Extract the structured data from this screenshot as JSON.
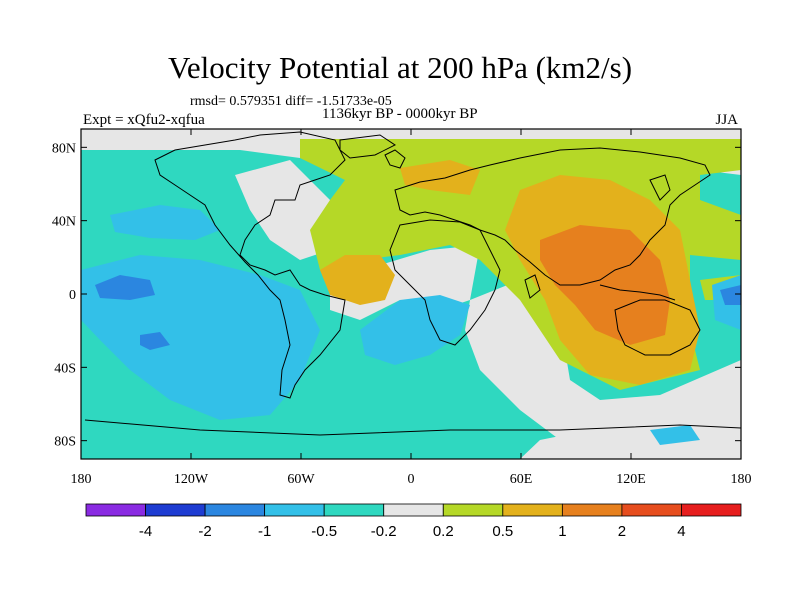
{
  "title": "Velocity Potential at 200 hPa (km2/s)",
  "stats": "rmsd= 0.579351  diff= -1.51733e-05",
  "experiment": "Expt = xQfu2-xqfua",
  "period": "1136kyr BP - 0000kyr BP",
  "season": "JJA",
  "chart_data": {
    "type": "heatmap",
    "map_type": "filled contour on world map",
    "variable": "Velocity Potential at 200 hPa (km2/s)",
    "lon_ticks": [
      {
        "value": -180,
        "label": "180"
      },
      {
        "value": -120,
        "label": "120W"
      },
      {
        "value": -60,
        "label": "60W"
      },
      {
        "value": 0,
        "label": "0"
      },
      {
        "value": 60,
        "label": "60E"
      },
      {
        "value": 120,
        "label": "120E"
      },
      {
        "value": 180,
        "label": "180"
      }
    ],
    "lat_ticks": [
      {
        "value": 80,
        "label": "80N"
      },
      {
        "value": 40,
        "label": "40N"
      },
      {
        "value": 0,
        "label": "0"
      },
      {
        "value": -40,
        "label": "40S"
      },
      {
        "value": -80,
        "label": "80S"
      }
    ],
    "lon_range": [
      -180,
      180
    ],
    "lat_range": [
      -90,
      90
    ],
    "colorbar": {
      "levels": [
        "-4",
        "-2",
        "-1",
        "-0.5",
        "-0.2",
        "0.2",
        "0.5",
        "1",
        "2",
        "4"
      ],
      "colors": [
        "#8a2be2",
        "#1e3cd2",
        "#2b86e0",
        "#33c0e8",
        "#2fd8c0",
        "#e6e6e6",
        "#b5d827",
        "#e3b11c",
        "#e6801e",
        "#e64d1e",
        "#e61e1e"
      ]
    },
    "regions": [
      {
        "description": "Indian Ocean / Maritime Continent maximum",
        "level_range": "1 to 2",
        "center_lon": 100,
        "center_lat": 5
      },
      {
        "description": "Asia / Indian Ocean",
        "level_range": "0.5 to 1",
        "center_lon": 90,
        "center_lat": 15
      },
      {
        "description": "Eurasia / North Atlantic",
        "level_range": "0.2 to 0.5",
        "center_lon": 20,
        "center_lat": 50
      },
      {
        "description": "Equatorial Atlantic",
        "level_range": "0.5 to 1",
        "center_lon": -30,
        "center_lat": 5
      },
      {
        "description": "Pacific Ocean",
        "level_range": "-0.5 to -0.2",
        "center_lon": -130,
        "center_lat": 10
      },
      {
        "description": "Central Pacific minimum",
        "level_range": "-1 to -2",
        "center_lon": -160,
        "center_lat": 0
      },
      {
        "description": "South Pacific",
        "level_range": "-1 to -0.5",
        "center_lon": -110,
        "center_lat": -30
      }
    ]
  }
}
